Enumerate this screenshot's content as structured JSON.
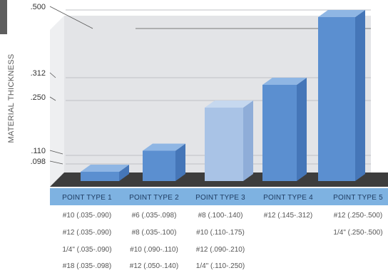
{
  "chart_data": {
    "type": "bar",
    "ylabel": "MATERIAL THICKNESS",
    "yticks": [
      ".098",
      ".110",
      ".250",
      ".312",
      ".500"
    ],
    "ytick_values": [
      0.098,
      0.11,
      0.25,
      0.312,
      0.5
    ],
    "categories": [
      "POINT TYPE 1",
      "POINT TYPE 2",
      "POINT TYPE 3",
      "POINT TYPE 4",
      "POINT TYPE 5"
    ],
    "values": [
      0.09,
      0.14,
      0.25,
      0.312,
      0.5
    ],
    "specs": [
      [
        "#10 (.035-.090)",
        "#12 (.035-.090)",
        "1/4\" (.035-.090)",
        "#18 (.035-.098)"
      ],
      [
        "#6 (.035-.098)",
        "#8 (.035-.100)",
        "#10 (.090-.110)",
        "#12 (.050-.140)"
      ],
      [
        "#8 (.100-.140)",
        "#10 (.110-.175)",
        "#12 (.090-.210)",
        "1/4\" (.110-.250)"
      ],
      [
        "#12 (.145-.312)"
      ],
      [
        "#12 (.250-.500)",
        "1/4\" (.250-.500)"
      ]
    ],
    "colors": {
      "bar_front": "#5b8fd0",
      "bar_side": "#4576b8",
      "bar_top": "#8fb6e4",
      "highlight_bar": "#a9c3e6",
      "floor": "#3d3d3d",
      "back_wall": "#e3e4e7",
      "category_band": "#7eb2e1"
    }
  }
}
